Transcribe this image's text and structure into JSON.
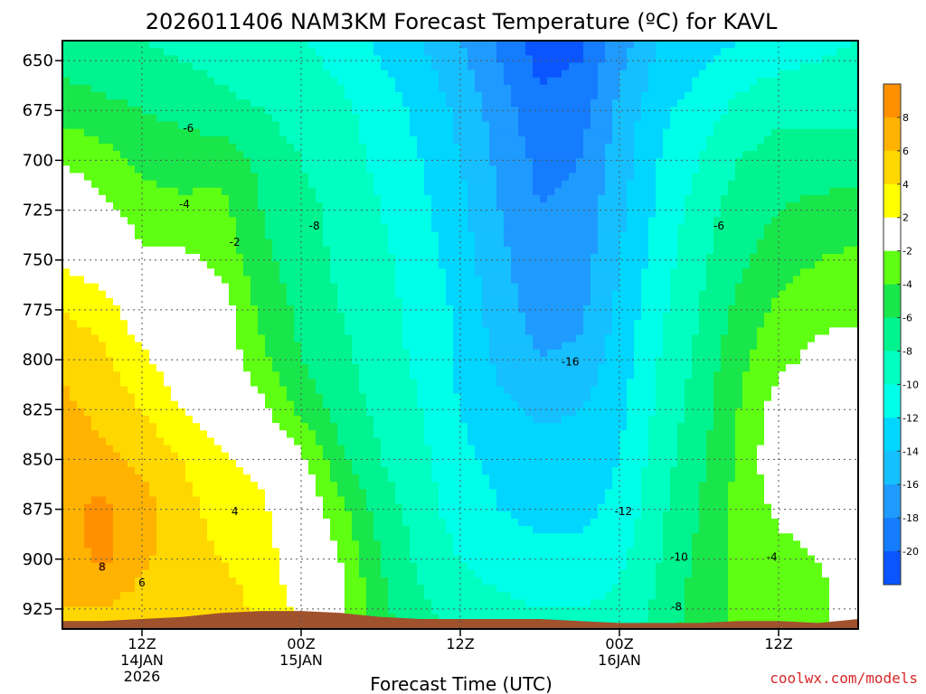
{
  "page": {
    "title": "2026011406 NAM3KM Forecast Temperature (ºC) for KAVL",
    "credit": "coolwx.com/models"
  },
  "chart_data": {
    "type": "heatmap",
    "title": "2026011406 NAM3KM Forecast Temperature (ºC) for KAVL",
    "xlabel": "Forecast Time (UTC)",
    "ylabel": "",
    "x_unit": "forecast hour",
    "xlim": [
      0,
      60
    ],
    "ylim": [
      935,
      640
    ],
    "y_ticks": [
      650,
      675,
      700,
      725,
      750,
      775,
      800,
      825,
      850,
      875,
      900,
      925
    ],
    "x_ticks": [
      {
        "x": 6,
        "lines": [
          "12Z",
          "14JAN",
          "2026"
        ]
      },
      {
        "x": 18,
        "lines": [
          "00Z",
          "15JAN"
        ]
      },
      {
        "x": 30,
        "lines": [
          "12Z"
        ]
      },
      {
        "x": 42,
        "lines": [
          "00Z",
          "16JAN"
        ]
      },
      {
        "x": 54,
        "lines": [
          "12Z"
        ]
      }
    ],
    "grid": true,
    "colorbar": {
      "levels": [
        -22,
        -20,
        -18,
        -16,
        -14,
        -12,
        -10,
        -8,
        -6,
        -4,
        -2,
        2,
        4,
        6,
        8,
        10
      ],
      "colors": [
        "#0a55ff",
        "#157cff",
        "#1f9bff",
        "#16bfff",
        "#00d6ff",
        "#00ffe9",
        "#00ffc1",
        "#00f38f",
        "#19e64a",
        "#5eff12",
        "#ffffff",
        "#ffff00",
        "#ffd700",
        "#ffb300",
        "#ff9100"
      ],
      "tick_labels": [
        "8",
        "6",
        "4",
        "2",
        "-2",
        "-4",
        "-6",
        "-8",
        "-10",
        "-12",
        "-14",
        "-16",
        "-18",
        "-20"
      ]
    },
    "x": [
      0,
      3,
      6,
      9,
      12,
      15,
      18,
      21,
      24,
      27,
      30,
      33,
      36,
      39,
      42,
      45,
      48,
      51,
      54,
      57,
      60
    ],
    "y": [
      640,
      650,
      675,
      700,
      725,
      750,
      775,
      800,
      825,
      850,
      875,
      900,
      925,
      935
    ],
    "values": [
      [
        -7,
        -7.5,
        -8,
        -8.5,
        -9,
        -9.5,
        -10,
        -11,
        -12.5,
        -14,
        -16,
        -18.5,
        -21,
        -20.5,
        -17,
        -14,
        -13,
        -12,
        -11,
        -10.5,
        -10
      ],
      [
        -6.5,
        -7,
        -7.5,
        -8,
        -8.5,
        -9,
        -9.5,
        -10.5,
        -12,
        -13.5,
        -15.5,
        -18,
        -20.5,
        -20,
        -16.5,
        -13.5,
        -12.5,
        -11,
        -10.5,
        -10,
        -9.5
      ],
      [
        -5,
        -5.5,
        -6,
        -6.5,
        -7.5,
        -8,
        -9,
        -9.5,
        -11,
        -12.5,
        -14.5,
        -17,
        -19.5,
        -19,
        -15.5,
        -12.5,
        -11,
        -9.5,
        -8.5,
        -8.5,
        -8.5
      ],
      [
        -2,
        -3,
        -4.5,
        -5,
        -4.5,
        -6.5,
        -8,
        -9,
        -10.5,
        -12,
        -14,
        -16.5,
        -18.5,
        -18,
        -15,
        -12,
        -10,
        -8,
        -7,
        -7,
        -7
      ],
      [
        -0.5,
        -1.5,
        -3,
        -3.5,
        -3.5,
        -6,
        -7.5,
        -8.5,
        -10,
        -11.5,
        -13.5,
        -16,
        -18,
        -17.5,
        -14.5,
        -11.5,
        -9,
        -7,
        -6,
        -5.5,
        -5
      ],
      [
        1.5,
        0.5,
        -1.5,
        -1.5,
        -2.5,
        -5.5,
        -7,
        -8.5,
        -9.5,
        -11,
        -13,
        -15.5,
        -17.5,
        -17,
        -14,
        -11,
        -8.5,
        -6.5,
        -5,
        -4,
        -3.5
      ],
      [
        4,
        3,
        0.5,
        -0.5,
        -1,
        -4.5,
        -6.5,
        -8,
        -9.5,
        -10.5,
        -12.5,
        -15,
        -17,
        -16.5,
        -13.5,
        -10.5,
        -8,
        -5.5,
        -3.5,
        -2.5,
        -2.5
      ],
      [
        5.5,
        4.5,
        2.5,
        0.5,
        -0.5,
        -3.5,
        -6,
        -7.5,
        -9,
        -10.5,
        -12.5,
        -14.5,
        -16,
        -15.5,
        -13,
        -10,
        -7.5,
        -4.5,
        -2.5,
        -1.5,
        -1
      ],
      [
        6.5,
        5.5,
        4,
        2,
        0.5,
        -1.5,
        -4.5,
        -7,
        -8.5,
        -10,
        -12,
        -13.5,
        -14.5,
        -14,
        -12.5,
        -9.5,
        -7,
        -4,
        -1,
        0.5,
        0
      ],
      [
        7,
        6.5,
        5.5,
        4,
        2.5,
        1,
        -1.5,
        -5.5,
        -8,
        -9.5,
        -11.5,
        -12.5,
        -13,
        -13,
        -12,
        -9,
        -6.5,
        -3.5,
        -0.5,
        1,
        0.5
      ],
      [
        7.5,
        8.5,
        7,
        4.5,
        3.5,
        2.5,
        0,
        -3.5,
        -7,
        -9,
        -11,
        -12,
        -12.5,
        -12.5,
        -11.5,
        -8.5,
        -6,
        -3.5,
        -1.5,
        0,
        -0.5
      ],
      [
        7,
        8.5,
        6.5,
        4.5,
        4,
        3,
        0.5,
        -2,
        -6,
        -8.5,
        -10,
        -11,
        -11.5,
        -11.5,
        -10.5,
        -8,
        -5.5,
        -3.5,
        -3,
        -2,
        -1.5
      ],
      [
        6,
        6,
        5,
        4.5,
        5,
        3.5,
        1.5,
        -1.5,
        -5.5,
        -7.5,
        -9,
        -9.5,
        -10,
        -10,
        -9.5,
        -7.5,
        -5,
        -3.5,
        -3,
        -3,
        1.5
      ],
      [
        5,
        5,
        4.5,
        4.5,
        5,
        3.5,
        2,
        -1,
        -5,
        -7,
        -8.5,
        -9,
        -9.5,
        -9.5,
        -9,
        -7,
        -5,
        -3.5,
        -3,
        -3,
        2
      ]
    ],
    "terrain": {
      "color": "#a0522d",
      "surface_hpa": [
        931,
        931,
        930,
        929,
        927,
        926,
        926,
        927,
        929,
        930,
        930,
        930,
        930,
        931,
        932,
        932,
        932,
        931,
        931,
        932,
        930
      ]
    },
    "contour_labels": [
      {
        "text": "-6",
        "x": 9.5,
        "y": 684
      },
      {
        "text": "-4",
        "x": 9.2,
        "y": 722
      },
      {
        "text": "-2",
        "x": 13,
        "y": 741
      },
      {
        "text": "-8",
        "x": 19,
        "y": 733
      },
      {
        "text": "-6",
        "x": 49.5,
        "y": 733
      },
      {
        "text": "-16",
        "x": 38.3,
        "y": 801
      },
      {
        "text": "-12",
        "x": 42.3,
        "y": 876
      },
      {
        "text": "-10",
        "x": 46.5,
        "y": 899
      },
      {
        "text": "-8",
        "x": 46.3,
        "y": 924
      },
      {
        "text": "-4",
        "x": 53.5,
        "y": 899
      },
      {
        "text": "4",
        "x": 13,
        "y": 876
      },
      {
        "text": "6",
        "x": 6,
        "y": 912
      },
      {
        "text": "8",
        "x": 3,
        "y": 904
      }
    ]
  }
}
